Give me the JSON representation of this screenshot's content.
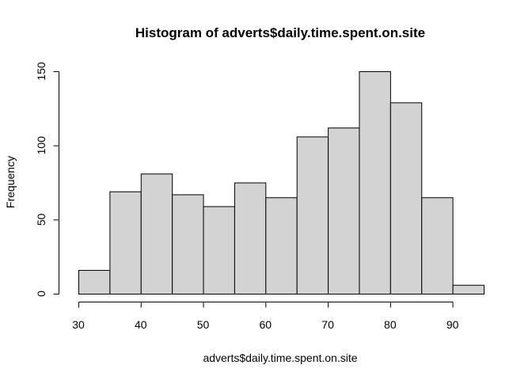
{
  "chart_data": {
    "type": "bar",
    "title": "Histogram of adverts$daily.time.spent.on.site",
    "xlabel": "adverts$daily.time.spent.on.site",
    "ylabel": "Frequency",
    "bins": [
      {
        "from": 30,
        "to": 35,
        "count": 16
      },
      {
        "from": 35,
        "to": 40,
        "count": 69
      },
      {
        "from": 40,
        "to": 45,
        "count": 81
      },
      {
        "from": 45,
        "to": 50,
        "count": 67
      },
      {
        "from": 50,
        "to": 55,
        "count": 59
      },
      {
        "from": 55,
        "to": 60,
        "count": 75
      },
      {
        "from": 60,
        "to": 65,
        "count": 65
      },
      {
        "from": 65,
        "to": 70,
        "count": 106
      },
      {
        "from": 70,
        "to": 75,
        "count": 112
      },
      {
        "from": 75,
        "to": 80,
        "count": 150
      },
      {
        "from": 80,
        "to": 85,
        "count": 129
      },
      {
        "from": 85,
        "to": 90,
        "count": 65
      },
      {
        "from": 90,
        "to": 95,
        "count": 6
      }
    ],
    "xlim": [
      30,
      95
    ],
    "ylim": [
      0,
      150
    ],
    "xticks": [
      30,
      40,
      50,
      60,
      70,
      80,
      90
    ],
    "yticks": [
      0,
      50,
      100,
      150
    ],
    "bar_color": "#d3d3d3",
    "grid": false,
    "legend": "none"
  }
}
